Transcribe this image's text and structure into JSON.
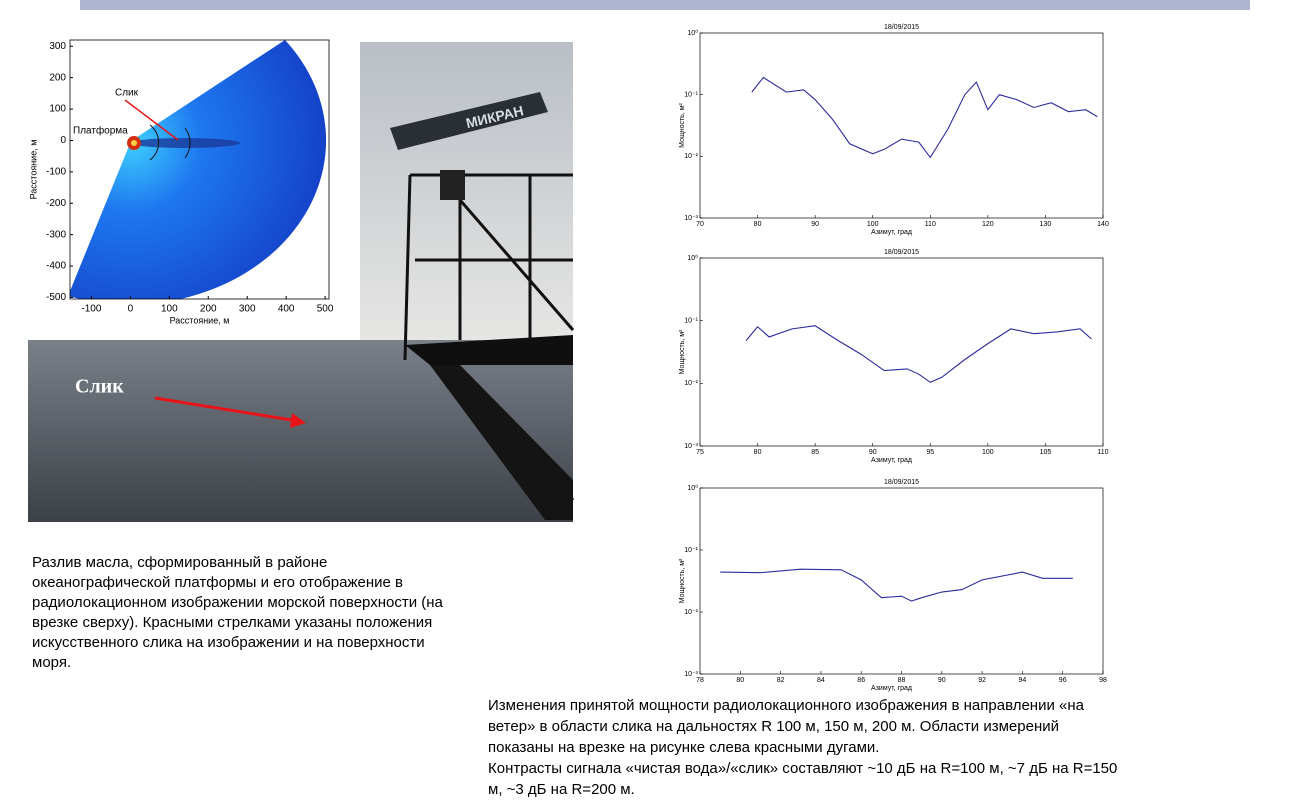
{
  "inset": {
    "xlabel": "Расстояние, м",
    "ylabel": "Расстояние, м",
    "xlim": [
      -155,
      510
    ],
    "ylim": [
      -505,
      320
    ],
    "xticks": [
      -100,
      0,
      100,
      200,
      300,
      400,
      500
    ],
    "yticks": [
      300,
      200,
      100,
      0,
      -100,
      -200,
      -300,
      -400,
      -500
    ],
    "annotations": [
      "Слик",
      "Платформа"
    ]
  },
  "photo": {
    "annotation": "Слик",
    "radar_label": "МИКРАН"
  },
  "left_caption": [
    "Разлив масла, сформированный в районе",
    "океанографической платформы и его отображение в",
    "радиолокационном изображении морской поверхности (на",
    "врезке сверху). Красными стрелками указаны  положения",
    "искусственного слика на изображении и на поверхности",
    "моря."
  ],
  "chart_data": [
    {
      "type": "line",
      "title": "18/09/2015",
      "xlabel": "Азимут, град",
      "ylabel": "Мощность, м²",
      "log_y": true,
      "color": "#2b2b9a",
      "x": [
        79,
        81,
        85,
        88,
        90,
        93,
        96,
        100,
        102,
        105,
        108,
        110,
        113,
        116,
        118,
        120,
        122,
        125,
        128,
        131,
        134,
        137,
        139
      ],
      "values": [
        0.11,
        0.19,
        0.11,
        0.12,
        0.083,
        0.04,
        0.016,
        0.011,
        0.013,
        0.019,
        0.017,
        0.0096,
        0.027,
        0.1,
        0.16,
        0.057,
        0.1,
        0.083,
        0.062,
        0.074,
        0.053,
        0.057,
        0.044
      ],
      "xlim": [
        70,
        140
      ],
      "xticks": [
        70,
        80,
        90,
        100,
        110,
        120,
        130,
        140
      ],
      "ylim": [
        0.001,
        1
      ],
      "yticks": [
        {
          "value": 0.001,
          "label": "10⁻³"
        },
        {
          "value": 0.01,
          "label": "10⁻²"
        },
        {
          "value": 0.1,
          "label": "10⁻¹"
        },
        {
          "value": 1,
          "label": "10⁰"
        }
      ]
    },
    {
      "type": "line",
      "title": "18/09/2015",
      "xlabel": "Азимут, град",
      "ylabel": "Мощность, м²",
      "log_y": true,
      "color": "#2b2b9a",
      "x": [
        79,
        80,
        81,
        83,
        85,
        87,
        89,
        91,
        93,
        94,
        95,
        96,
        98,
        100,
        102,
        104,
        106,
        108,
        109
      ],
      "values": [
        0.048,
        0.08,
        0.055,
        0.074,
        0.083,
        0.048,
        0.029,
        0.016,
        0.017,
        0.014,
        0.0104,
        0.0125,
        0.024,
        0.043,
        0.074,
        0.062,
        0.066,
        0.074,
        0.051
      ],
      "xlim": [
        75,
        110
      ],
      "xticks": [
        75,
        80,
        85,
        90,
        95,
        100,
        105,
        110
      ],
      "ylim": [
        0.001,
        1
      ],
      "yticks": [
        {
          "value": 0.001,
          "label": "10⁻³"
        },
        {
          "value": 0.01,
          "label": "10⁻²"
        },
        {
          "value": 0.1,
          "label": "10⁻¹"
        },
        {
          "value": 1,
          "label": "10⁰"
        }
      ]
    },
    {
      "type": "line",
      "title": "18/09/2015",
      "xlabel": "Азимут, град",
      "ylabel": "Мощность, м²",
      "log_y": true,
      "color": "#2b2b9a",
      "x": [
        79,
        81,
        83,
        85,
        86,
        87,
        88,
        88.5,
        89,
        90,
        91,
        92,
        94,
        95,
        96.5
      ],
      "values": [
        0.044,
        0.043,
        0.049,
        0.048,
        0.033,
        0.017,
        0.018,
        0.015,
        0.017,
        0.021,
        0.023,
        0.033,
        0.044,
        0.035,
        0.035
      ],
      "xlim": [
        78,
        98
      ],
      "xticks": [
        78,
        80,
        82,
        84,
        86,
        88,
        90,
        92,
        94,
        96,
        98
      ],
      "ylim": [
        0.001,
        1
      ],
      "yticks": [
        {
          "value": 0.001,
          "label": "10⁻³"
        },
        {
          "value": 0.01,
          "label": "10⁻²"
        },
        {
          "value": 0.1,
          "label": "10⁻¹"
        },
        {
          "value": 1,
          "label": "10⁰"
        }
      ]
    }
  ],
  "right_caption": [
    "Изменения принятой мощности радиолокационного изображения в направлении «на",
    "ветер» в области слика на дальностях R  100 м, 150 м, 200 м.  Области измерений",
    "показаны на врезке на рисунке слева красными дугами.",
    "Контрасты сигнала «чистая вода»/«слик» составляют ~10 дБ  на R=100 м, ~7 дБ  на R=150",
    "м, ~3 дБ  на R=200 м."
  ]
}
